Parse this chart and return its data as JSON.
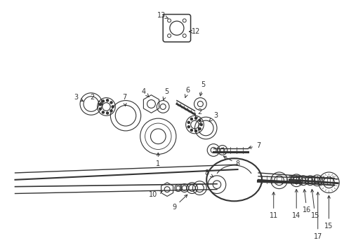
{
  "bg_color": "#ffffff",
  "line_color": "#333333",
  "figsize": [
    4.9,
    3.6
  ],
  "dpi": 100
}
